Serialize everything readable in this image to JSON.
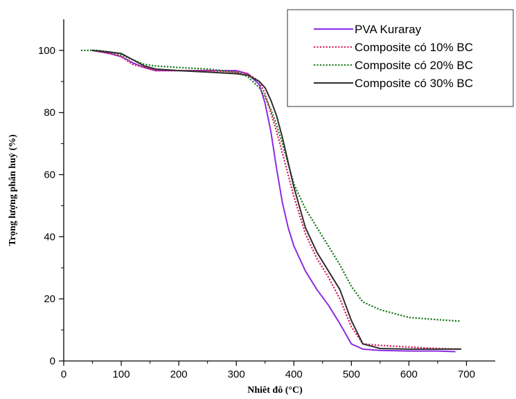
{
  "chart_data": {
    "type": "line",
    "title": "",
    "xlabel": "Nhiêt đô (°C)",
    "ylabel": "Trọng lượng phân huỷ (%)",
    "xlim": [
      0,
      750
    ],
    "ylim": [
      0,
      110
    ],
    "xticks": [
      0,
      100,
      200,
      300,
      400,
      500,
      600,
      700
    ],
    "yticks": [
      0,
      20,
      40,
      60,
      80,
      100
    ],
    "grid": false,
    "legend_position": "top-right",
    "series": [
      {
        "name": "PVA Kuraray",
        "color": "#8a2be2",
        "style": "solid",
        "x": [
          50,
          80,
          100,
          120,
          140,
          160,
          200,
          250,
          300,
          320,
          340,
          350,
          360,
          370,
          380,
          390,
          400,
          420,
          440,
          460,
          480,
          500,
          520,
          550,
          600,
          650,
          680
        ],
        "y": [
          100,
          99,
          98,
          96,
          94.5,
          93.5,
          93.5,
          93.5,
          93.5,
          92.5,
          89,
          83,
          74,
          62,
          51,
          43,
          37,
          29,
          23,
          18,
          12,
          5.5,
          3.8,
          3.4,
          3.2,
          3.2,
          3
        ]
      },
      {
        "name": "Composite có 10% BC",
        "color": "#d81b60",
        "style": "dotted",
        "x": [
          50,
          80,
          100,
          120,
          140,
          160,
          200,
          250,
          300,
          320,
          340,
          350,
          360,
          370,
          380,
          400,
          420,
          440,
          460,
          480,
          500,
          520,
          550,
          600,
          650,
          690
        ],
        "y": [
          100,
          99,
          98,
          95.5,
          94.5,
          93.5,
          93.5,
          93.5,
          93,
          92.5,
          90,
          86,
          80,
          74,
          67,
          53,
          41,
          33,
          27,
          20,
          11,
          5.5,
          5,
          4.5,
          4,
          3.8
        ]
      },
      {
        "name": "Composite có 20% BC",
        "color": "#1b7a1b",
        "style": "dotted",
        "x": [
          30,
          60,
          80,
          100,
          120,
          140,
          160,
          200,
          250,
          300,
          320,
          340,
          350,
          360,
          370,
          380,
          400,
          420,
          440,
          460,
          480,
          500,
          520,
          550,
          600,
          650,
          690
        ],
        "y": [
          100,
          100,
          99.5,
          98.5,
          97,
          95.5,
          95,
          94.5,
          94,
          93,
          91.5,
          88,
          85,
          81,
          76,
          70,
          57,
          49,
          43,
          37,
          31,
          24,
          19,
          16.5,
          14,
          13.3,
          12.8
        ]
      },
      {
        "name": "Composite có 30% BC",
        "color": "#2d2d2d",
        "style": "solid",
        "x": [
          50,
          80,
          100,
          120,
          140,
          160,
          200,
          250,
          300,
          320,
          340,
          350,
          360,
          370,
          380,
          390,
          400,
          420,
          440,
          460,
          480,
          500,
          520,
          550,
          600,
          650,
          690
        ],
        "y": [
          100,
          99.5,
          99,
          97,
          95,
          94,
          93.5,
          93,
          92.5,
          92,
          90,
          88,
          84,
          79,
          72,
          64,
          56,
          43,
          35,
          29,
          23,
          13,
          5.5,
          4,
          3.8,
          3.8,
          3.8
        ]
      }
    ]
  }
}
